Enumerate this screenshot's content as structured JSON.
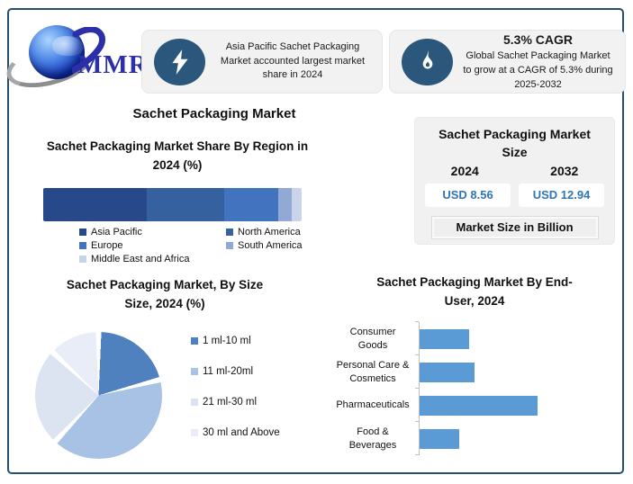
{
  "logo": {
    "text": "MMR"
  },
  "highlight_boxes": [
    {
      "icon": "lightning-icon",
      "text": "Asia Pacific Sachet Packaging Market accounted largest market share in 2024"
    },
    {
      "icon": "flame-icon",
      "heading": "5.3% CAGR",
      "text": "Global Sachet Packaging Market to grow at a CAGR of 5.3% during 2025-2032"
    }
  ],
  "main_title": "Sachet Packaging Market",
  "region_chart": {
    "title_lines": [
      "Sachet Packaging Market Share By Region in",
      "2024 (%)"
    ]
  },
  "market_size_panel": {
    "title_lines": [
      "Sachet Packaging Market",
      "Size"
    ],
    "years": [
      "2024",
      "2032"
    ],
    "values": [
      "USD 8.56",
      "USD 12.94"
    ],
    "note": "Market Size in Billion",
    "value_color": "#2E75B6"
  },
  "size_pie": {
    "title_lines": [
      "Sachet Packaging Market, By Size",
      "Size, 2024 (%)"
    ]
  },
  "enduser_chart": {
    "title_lines": [
      "Sachet Packaging Market By End-",
      "User, 2024"
    ],
    "label_lines": [
      [
        "Consumer",
        "Goods"
      ],
      [
        "Personal Care &",
        "Cosmetics"
      ],
      [
        "Pharmaceuticals"
      ],
      [
        "Food &",
        "Beverages"
      ]
    ]
  },
  "chart_data": [
    {
      "type": "bar",
      "subtype": "stacked-horizontal",
      "title": "Sachet Packaging Market Share By Region in 2024 (%)",
      "categories": [
        "Asia Pacific",
        "North America",
        "Europe",
        "South America",
        "Middle East and Africa"
      ],
      "values": [
        40,
        30,
        21,
        5,
        4
      ],
      "colors": [
        "#27498A",
        "#35619F",
        "#4273BE",
        "#92A9D6",
        "#C9D3EA"
      ],
      "xlim": [
        0,
        100
      ],
      "legend_position": "bottom",
      "grid": false
    },
    {
      "type": "pie",
      "title": "Sachet Packaging Market, By Size Size, 2024 (%)",
      "categories": [
        "1 ml-10 ml",
        "11 ml-20ml",
        "21 ml-30 ml",
        "30 ml and Above"
      ],
      "values": [
        21,
        41,
        25,
        13
      ],
      "colors": [
        "#4E81BD",
        "#A7C2E4",
        "#DCE3F1",
        "#E9EDF7"
      ],
      "legend_position": "right"
    },
    {
      "type": "bar",
      "subtype": "horizontal",
      "title": "Sachet Packaging Market By End-User, 2024",
      "categories": [
        "Consumer Goods",
        "Personal Care & Cosmetics",
        "Pharmaceuticals",
        "Food & Beverages"
      ],
      "values": [
        19,
        21,
        45,
        15
      ],
      "bar_color": "#5B9BD5",
      "xlim": [
        0,
        50
      ],
      "grid": false
    }
  ]
}
